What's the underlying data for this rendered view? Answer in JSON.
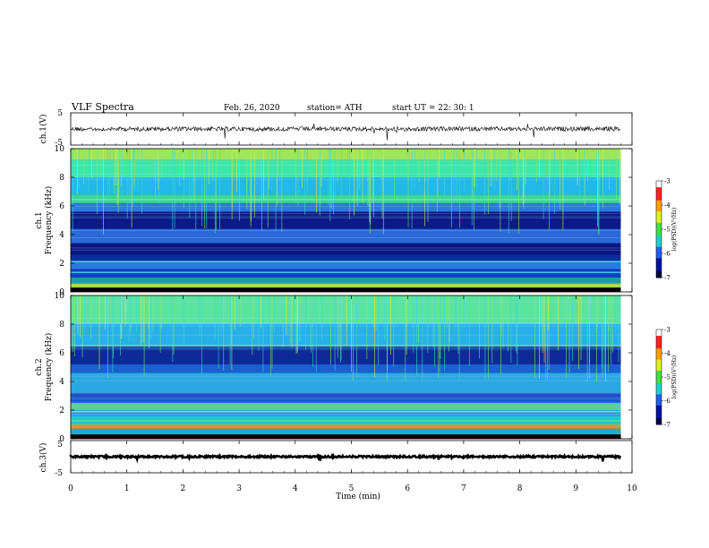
{
  "header": {
    "title": "VLF  Spectra",
    "date": "Feb. 26, 2020",
    "station": "station= ATH",
    "start": "start  UT  =    22: 30: 1"
  },
  "chart_data": [
    {
      "type": "line",
      "panel": "ch1-waveform",
      "ylabel": "ch.1(V)",
      "ylim": [
        -5,
        5
      ],
      "ticks": [
        "5",
        "-5"
      ]
    },
    {
      "type": "heatmap",
      "panel": "ch1-spectrogram",
      "ylabel_line1": "ch.1",
      "ylabel_line2": "Frequency  (kHz)",
      "ylim": [
        0,
        10
      ],
      "yticks": [
        "0",
        "2",
        "4",
        "6",
        "8",
        "10"
      ],
      "bands": [
        {
          "from": 0.0,
          "to": 0.3,
          "color": "#000000"
        },
        {
          "from": 0.3,
          "to": 0.6,
          "color": "#a0d050"
        },
        {
          "from": 0.6,
          "to": 1.0,
          "color": "#1aa0a0"
        },
        {
          "from": 1.0,
          "to": 1.6,
          "color": "#1040c0"
        },
        {
          "from": 1.6,
          "to": 2.2,
          "color": "#2a7be0"
        },
        {
          "from": 2.2,
          "to": 2.6,
          "color": "#102a9a"
        },
        {
          "from": 2.6,
          "to": 3.4,
          "color": "#0a1680"
        },
        {
          "from": 3.4,
          "to": 4.4,
          "color": "#2a6ad8"
        },
        {
          "from": 4.4,
          "to": 5.6,
          "color": "#0c1a88"
        },
        {
          "from": 5.6,
          "to": 6.2,
          "color": "#2b79e0"
        },
        {
          "from": 6.2,
          "to": 6.8,
          "color": "#3ad6a0"
        },
        {
          "from": 6.8,
          "to": 8.0,
          "color": "#22b8e8"
        },
        {
          "from": 8.0,
          "to": 9.2,
          "color": "#3ee8a8"
        },
        {
          "from": 9.2,
          "to": 10.0,
          "color": "#9ee65a"
        }
      ],
      "lines": [
        {
          "f": 6.45,
          "color": "#7cf060"
        },
        {
          "f": 2.1,
          "color": "#2ae0e0"
        },
        {
          "f": 1.35,
          "color": "#40c0f0"
        },
        {
          "f": 0.45,
          "color": "#c8e040"
        }
      ],
      "colorbar": {
        "label": "log(PSD)(V²/Hz)",
        "ticks": [
          "-3",
          "-4",
          "-5",
          "-6",
          "-7"
        ],
        "range": [
          -7,
          -3
        ]
      }
    },
    {
      "type": "heatmap",
      "panel": "ch2-spectrogram",
      "ylabel_line1": "ch.2",
      "ylabel_line2": "Frequency  (kHz)",
      "ylim": [
        0,
        10
      ],
      "yticks": [
        "0",
        "2",
        "4",
        "6",
        "8",
        "10"
      ],
      "bands": [
        {
          "from": 0.0,
          "to": 0.3,
          "color": "#000000"
        },
        {
          "from": 0.3,
          "to": 0.7,
          "color": "#18b0c8"
        },
        {
          "from": 0.7,
          "to": 1.0,
          "color": "#c8a030"
        },
        {
          "from": 1.0,
          "to": 1.6,
          "color": "#22c8c8"
        },
        {
          "from": 1.6,
          "to": 2.0,
          "color": "#2aa0e0"
        },
        {
          "from": 2.0,
          "to": 2.5,
          "color": "#58d090"
        },
        {
          "from": 2.5,
          "to": 3.2,
          "color": "#1a50c8"
        },
        {
          "from": 3.2,
          "to": 4.6,
          "color": "#2aa8e0"
        },
        {
          "from": 4.6,
          "to": 5.2,
          "color": "#1a60d0"
        },
        {
          "from": 5.2,
          "to": 6.2,
          "color": "#0e2a98"
        },
        {
          "from": 6.2,
          "to": 6.5,
          "color": "#1a50c0"
        },
        {
          "from": 6.5,
          "to": 8.0,
          "color": "#28b0e8"
        },
        {
          "from": 8.0,
          "to": 10.0,
          "color": "#5ae4a0"
        }
      ],
      "lines": [
        {
          "f": 6.5,
          "color": "#8ef060"
        },
        {
          "f": 1.9,
          "color": "#e0d040"
        },
        {
          "f": 1.25,
          "color": "#60e0a0"
        },
        {
          "f": 0.85,
          "color": "#e09020"
        }
      ],
      "colorbar": {
        "label": "log(PSD)(V²/Hz)",
        "ticks": [
          "-3",
          "-4",
          "-5",
          "-6",
          "-7"
        ],
        "range": [
          -7,
          -3
        ]
      }
    },
    {
      "type": "line",
      "panel": "ch3-waveform",
      "ylabel": "ch.3(V)",
      "ylim": [
        -5,
        5
      ],
      "ticks": [
        "5",
        "-5"
      ]
    }
  ],
  "xaxis": {
    "label": "Time  (min)",
    "xlim": [
      0,
      10
    ],
    "ticks": [
      "0",
      "1",
      "2",
      "3",
      "4",
      "5",
      "6",
      "7",
      "8",
      "9",
      "10"
    ],
    "data_end": 9.8
  },
  "colors": {
    "axis": "#000000",
    "trace": "#000000"
  }
}
